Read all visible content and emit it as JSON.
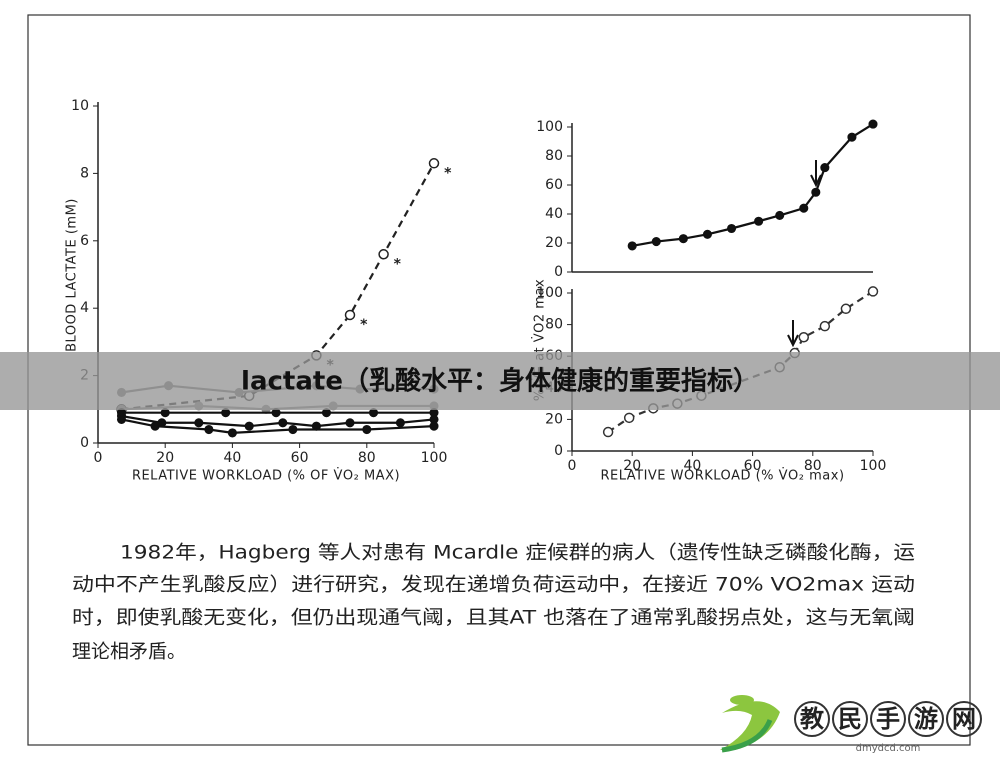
{
  "banner": {
    "title": "lactate（乳酸水平：身体健康的重要指标）"
  },
  "paragraph": {
    "lines": [
      "1982年，Hagberg 等人对患有 Mcardle 症候群的病人（遗传性缺乏磷酸化酶，运",
      "动中不产生乳酸反应）进行研究，发现在递增负荷运动中，在接近 70% VO2max 运动",
      "时，即使乳酸无变化，但仍出现通气阈，且其AT 也落在了通常乳酸拐点处，这与无氧阈",
      "理论相矛盾。"
    ]
  },
  "watermark": {
    "brand": "教民手游网",
    "url": "dmydcd.com"
  },
  "chart_data": [
    {
      "type": "line",
      "ylabel": "BLOOD LACTATE (mM)",
      "xlabel": "RELATIVE WORKLOAD (% OF V̇O₂ MAX)",
      "xlim": [
        0,
        100
      ],
      "xticks": [
        0,
        20,
        40,
        60,
        80,
        100
      ],
      "ylim": [
        0,
        10
      ],
      "yticks": [
        0,
        2,
        4,
        6,
        8,
        10
      ],
      "series": [
        {
          "color": "#222222",
          "dash": true,
          "marker": "open",
          "x": [
            7,
            45,
            65,
            75,
            85,
            100
          ],
          "values": [
            1.0,
            1.4,
            2.6,
            3.8,
            5.6,
            8.3
          ]
        },
        {
          "color": "#777777",
          "dash": false,
          "marker": "filled",
          "x": [
            7,
            21,
            42,
            65,
            78,
            100
          ],
          "values": [
            1.5,
            1.7,
            1.5,
            1.7,
            1.6,
            1.6
          ]
        },
        {
          "color": "#888888",
          "dash": false,
          "marker": "filled",
          "x": [
            7,
            30,
            50,
            70,
            100
          ],
          "values": [
            1.0,
            1.1,
            1.0,
            1.1,
            1.1
          ]
        },
        {
          "color": "#111111",
          "dash": false,
          "marker": "filled",
          "x": [
            7,
            20,
            38,
            53,
            68,
            82,
            100
          ],
          "values": [
            0.9,
            0.9,
            0.9,
            0.9,
            0.9,
            0.9,
            0.9
          ]
        },
        {
          "color": "#111111",
          "dash": false,
          "marker": "filled",
          "x": [
            7,
            19,
            30,
            45,
            55,
            65,
            75,
            90,
            100
          ],
          "values": [
            0.8,
            0.6,
            0.6,
            0.5,
            0.6,
            0.5,
            0.6,
            0.6,
            0.7
          ]
        },
        {
          "color": "#111111",
          "dash": false,
          "marker": "filled",
          "x": [
            7,
            17,
            33,
            40,
            58,
            80,
            100
          ],
          "values": [
            0.7,
            0.5,
            0.4,
            0.3,
            0.4,
            0.4,
            0.5
          ]
        }
      ],
      "annotations": [
        {
          "text": "*",
          "x": 103,
          "y": 8.0
        },
        {
          "text": "*",
          "x": 88,
          "y": 5.3
        },
        {
          "text": "*",
          "x": 78,
          "y": 3.5
        },
        {
          "text": "*",
          "x": 68,
          "y": 2.3
        }
      ]
    },
    {
      "type": "line",
      "xlim": [
        0,
        100
      ],
      "ylim": [
        0,
        100
      ],
      "yticks": [
        0,
        20,
        40,
        60,
        80,
        100
      ],
      "series": [
        {
          "color": "#111111",
          "dash": false,
          "marker": "filled",
          "x": [
            20,
            28,
            37,
            45,
            53,
            62,
            69,
            77,
            81,
            84,
            93,
            100
          ],
          "values": [
            18,
            21,
            23,
            26,
            30,
            35,
            39,
            44,
            55,
            72,
            93,
            102
          ]
        }
      ]
    },
    {
      "type": "line",
      "ylabel": "% V̇E at V̇O2 max",
      "xlabel": "RELATIVE WORKLOAD (% V̇O₂ max)",
      "xlim": [
        0,
        100
      ],
      "xticks": [
        0,
        20,
        40,
        60,
        80,
        100
      ],
      "ylim": [
        0,
        100
      ],
      "yticks": [
        0,
        20,
        40,
        60,
        80,
        100
      ],
      "series": [
        {
          "color": "#333333",
          "dash": true,
          "marker": "open",
          "x": [
            12,
            19,
            27,
            35,
            43,
            69,
            74,
            77,
            84,
            91,
            100
          ],
          "values": [
            12,
            21,
            27,
            30,
            35,
            53,
            62,
            72,
            79,
            90,
            101
          ]
        }
      ]
    }
  ]
}
